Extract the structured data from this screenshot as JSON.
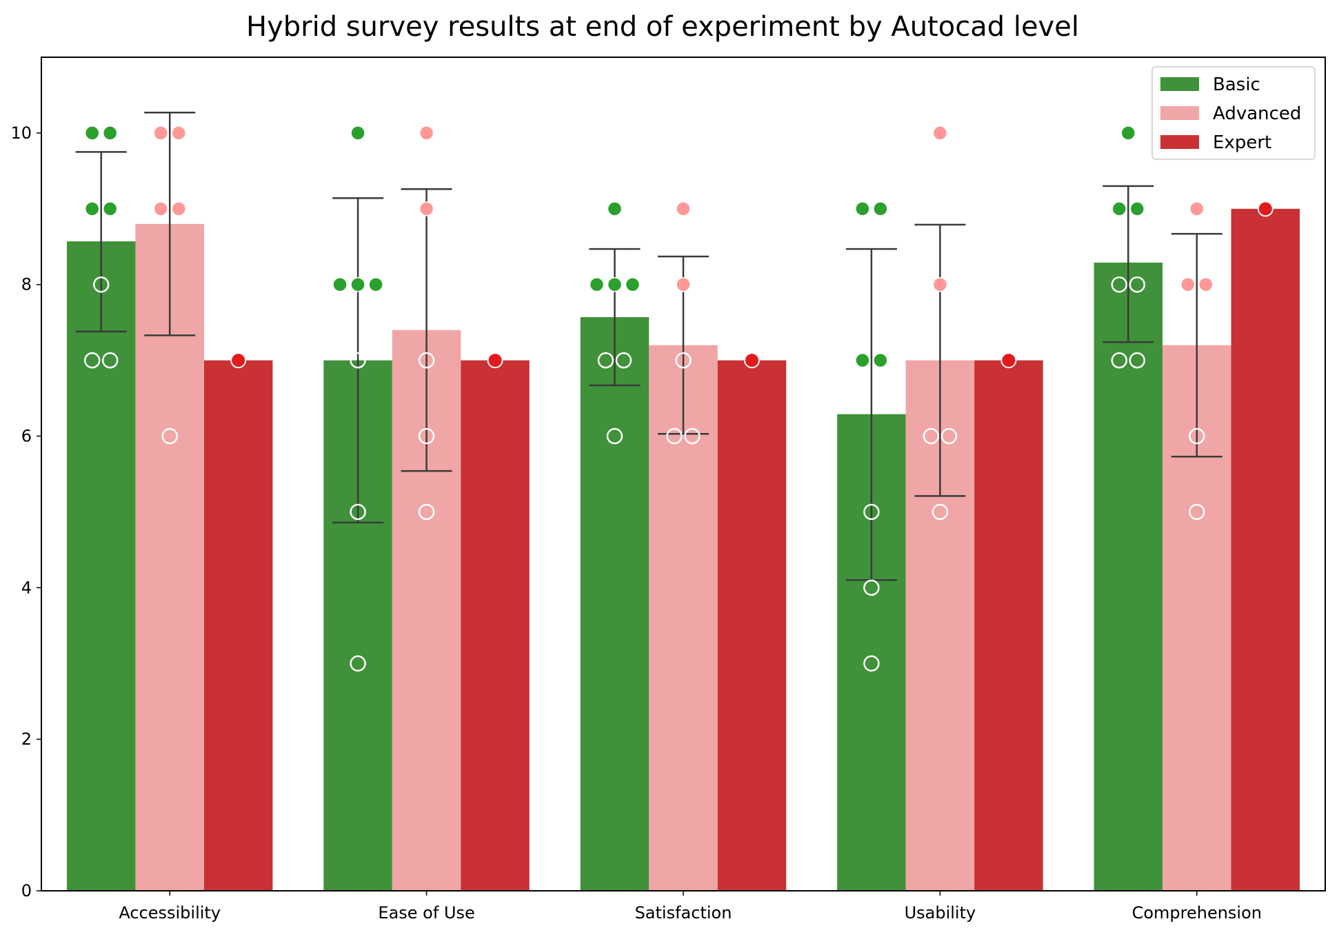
{
  "chart_data": {
    "type": "bar",
    "title": "Hybrid survey results at end of experiment by Autocad level",
    "xlabel": "",
    "ylabel": "",
    "ylim": [
      0,
      11
    ],
    "yticks": [
      0,
      2,
      4,
      6,
      8,
      10
    ],
    "grid": false,
    "legend_position": "top-right",
    "categories": [
      "Accessibility",
      "Ease of Use",
      "Satisfaction",
      "Usability",
      "Comprehension"
    ],
    "series": [
      {
        "name": "Basic",
        "bar_color": "#3f913a",
        "point_color": "#2ca02c",
        "values": [
          8.57,
          7.0,
          7.57,
          6.29,
          8.29
        ],
        "error_low": [
          7.38,
          4.86,
          6.67,
          4.1,
          7.24
        ],
        "error_high": [
          9.75,
          9.14,
          8.47,
          8.47,
          9.3
        ],
        "points": [
          [
            10,
            10,
            9,
            9,
            8,
            7,
            7
          ],
          [
            10,
            8,
            8,
            8,
            7,
            5,
            3
          ],
          [
            9,
            8,
            8,
            8,
            7,
            7,
            6
          ],
          [
            9,
            9,
            7,
            7,
            5,
            4,
            3
          ],
          [
            10,
            9,
            9,
            8,
            8,
            7,
            7
          ]
        ]
      },
      {
        "name": "Advanced",
        "bar_color": "#f0a6a6",
        "point_color": "#ff9896",
        "values": [
          8.8,
          7.4,
          7.2,
          7.0,
          7.2
        ],
        "error_low": [
          7.33,
          5.54,
          6.03,
          5.21,
          5.73
        ],
        "error_high": [
          10.27,
          9.26,
          8.37,
          8.79,
          8.67
        ],
        "points": [
          [
            10,
            10,
            9,
            9,
            6
          ],
          [
            10,
            9,
            7,
            6,
            5
          ],
          [
            9,
            8,
            7,
            6,
            6
          ],
          [
            10,
            8,
            6,
            6,
            5
          ],
          [
            9,
            8,
            8,
            6,
            5
          ]
        ]
      },
      {
        "name": "Expert",
        "bar_color": "#c93134",
        "point_color": "#e31a1c",
        "values": [
          7,
          7,
          7,
          7,
          9
        ],
        "points": [
          [
            7
          ],
          [
            7
          ],
          [
            7
          ],
          [
            7
          ],
          [
            9
          ]
        ]
      }
    ]
  }
}
